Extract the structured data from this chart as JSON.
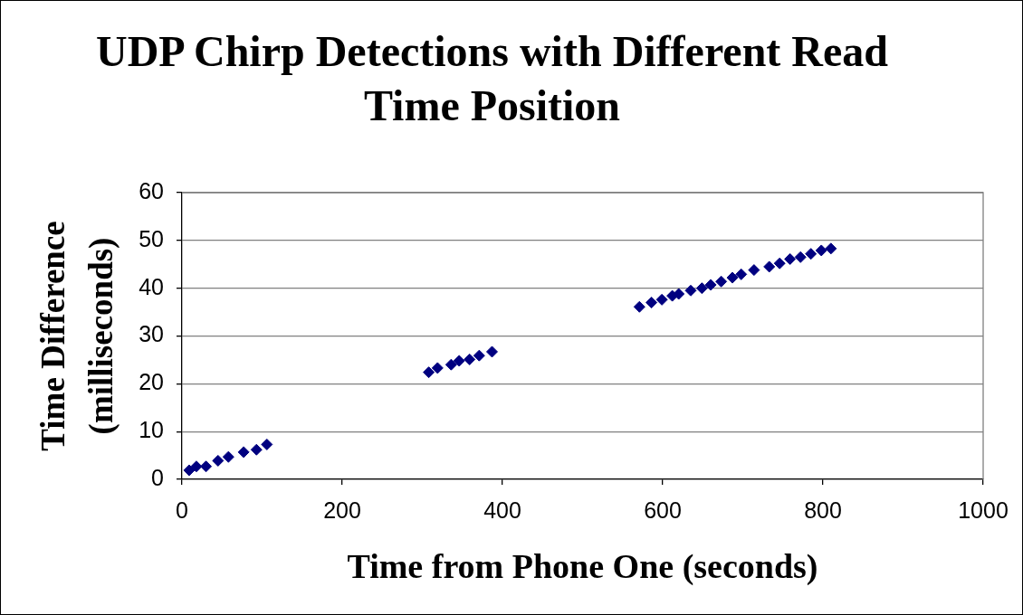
{
  "chart_data": {
    "type": "scatter",
    "title": "UDP Chirp Detections with Different Read Time Position",
    "xlabel": "Time from Phone One (seconds)",
    "ylabel": "Time Difference (milliseconds)",
    "x": [
      9,
      18,
      30,
      45,
      58,
      77,
      93,
      106,
      308,
      319,
      336,
      346,
      359,
      371,
      387,
      571,
      586,
      599,
      612,
      620,
      635,
      649,
      660,
      673,
      687,
      698,
      714,
      733,
      746,
      759,
      772,
      785,
      798,
      810
    ],
    "values": [
      1.9,
      2.7,
      2.7,
      3.9,
      4.7,
      5.7,
      6.2,
      7.3,
      22.4,
      23.3,
      24.0,
      24.8,
      25.1,
      25.9,
      26.7,
      36.1,
      37.0,
      37.6,
      38.4,
      38.8,
      39.5,
      40.0,
      40.7,
      41.4,
      42.2,
      42.9,
      43.8,
      44.5,
      45.2,
      46.1,
      46.5,
      47.2,
      47.9,
      48.3
    ],
    "color": "#000080",
    "marker": "diamond",
    "xlim": [
      0,
      1000
    ],
    "xticks": [
      0,
      200,
      400,
      600,
      800,
      1000
    ],
    "ylim": [
      0,
      60
    ],
    "yticks": [
      0,
      10,
      20,
      30,
      40,
      50,
      60
    ],
    "grid": "y"
  }
}
